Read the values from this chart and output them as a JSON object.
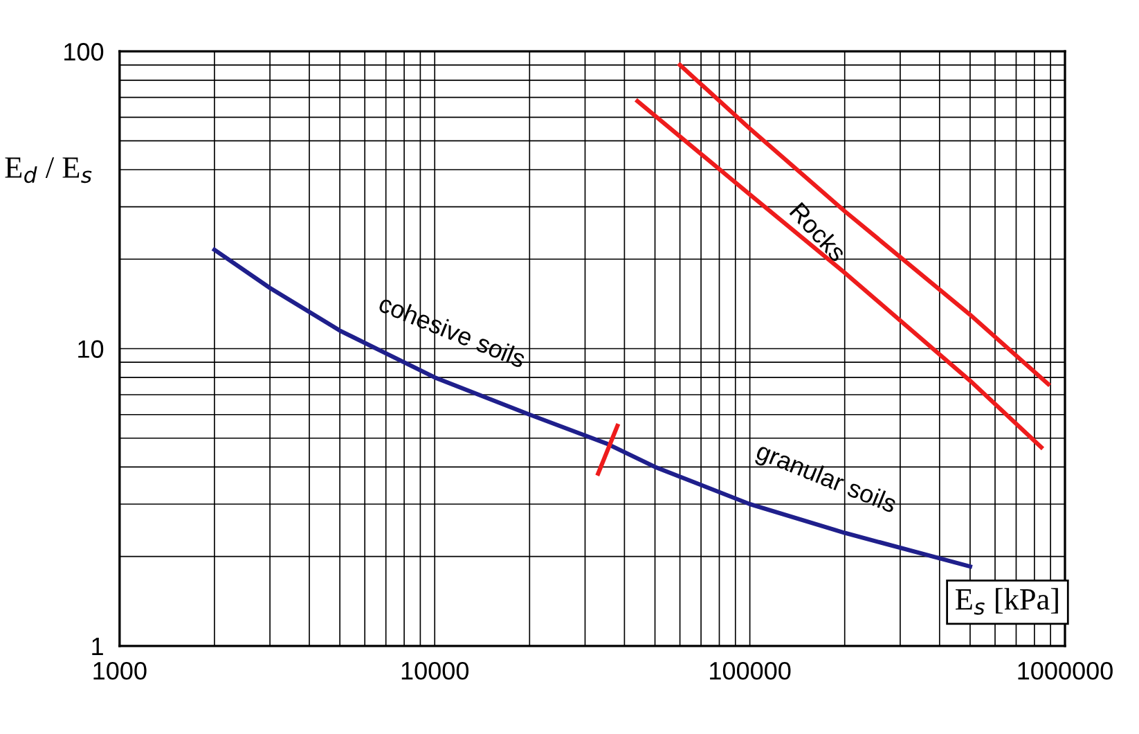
{
  "chart_data": {
    "type": "line",
    "xlabel": "E$_{s}$ [kPa]",
    "ylabel": "E$_{d}$ / E$_{s}$",
    "log": "xy",
    "xlim": [
      1000,
      1000000
    ],
    "ylim": [
      1,
      100
    ],
    "xticks": [
      1000,
      10000,
      100000,
      1000000
    ],
    "yticks": [
      1,
      10,
      100
    ],
    "grid": true,
    "marker": "none",
    "line_style": "solid",
    "series": [
      {
        "color": "#1f1f8c",
        "x": [
          2000,
          3000,
          5000,
          10000,
          20000,
          35000,
          50000,
          100000,
          200000,
          500000
        ],
        "values": [
          21.5,
          16,
          11.5,
          8.0,
          6.0,
          4.8,
          4.0,
          3.0,
          2.4,
          1.85
        ]
      },
      {
        "color": "#ee1c1c",
        "x": [
          60000,
          100000,
          200000,
          500000,
          885000
        ],
        "values": [
          90,
          55,
          29,
          13,
          7.6
        ]
      },
      {
        "color": "#ee1c1c",
        "x": [
          44000,
          100000,
          200000,
          500000,
          841000
        ],
        "values": [
          68,
          33,
          18,
          7.8,
          4.66
        ]
      },
      {
        "color": "#ee1c1c",
        "x": [
          33000,
          38000
        ],
        "values": [
          3.8,
          5.5
        ]
      }
    ],
    "annotations": [
      "cohesive soils",
      "granular soils",
      "Rocks"
    ]
  }
}
